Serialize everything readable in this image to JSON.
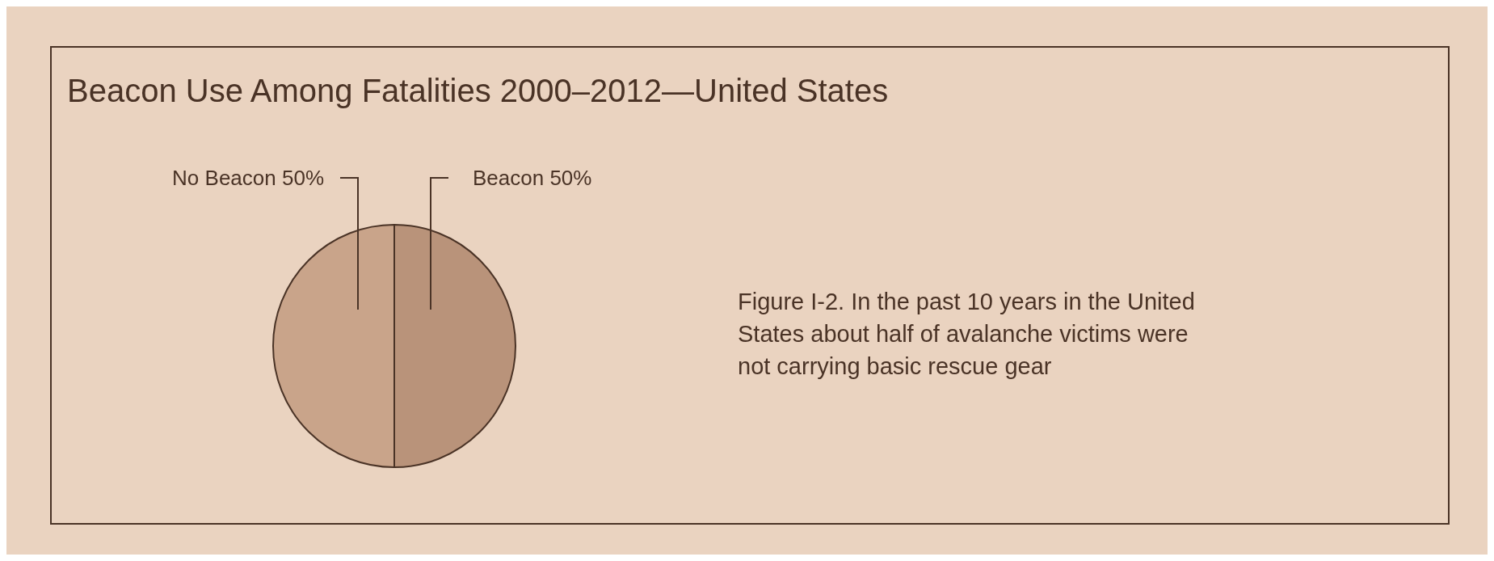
{
  "chart_data": {
    "type": "pie",
    "title": "Beacon Use Among Fatalities 2000–2012—United States",
    "categories": [
      "No Beacon",
      "Beacon"
    ],
    "values": [
      50,
      50
    ],
    "value_labels": [
      "50%",
      "50%"
    ],
    "colors": [
      "#c9a48a",
      "#b9937a"
    ],
    "annotations": [
      "Figure I-2. In the past 10 years in the United States about half of avalanche victims were not carrying basic rescue gear"
    ]
  }
}
